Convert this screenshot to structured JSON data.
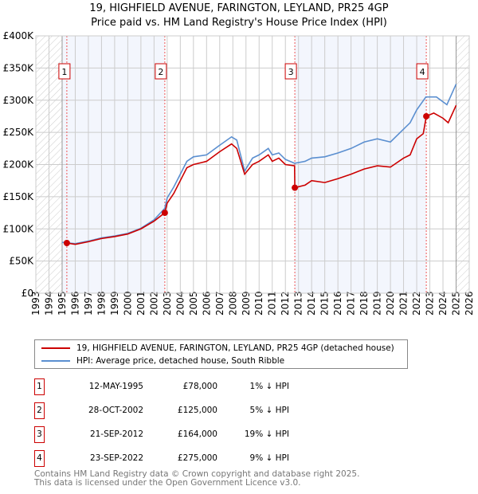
{
  "title_line1": "19, HIGHFIELD AVENUE, FARINGTON, LEYLAND, PR25 4GP",
  "title_line2": "Price paid vs. HM Land Registry's House Price Index (HPI)",
  "chart_data": {
    "type": "line",
    "xlim": [
      1993,
      2026
    ],
    "ylim": [
      0,
      400000
    ],
    "x_ticks": [
      "1993",
      "1994",
      "1995",
      "1996",
      "1997",
      "1998",
      "1999",
      "2000",
      "2001",
      "2002",
      "2003",
      "2004",
      "2005",
      "2006",
      "2007",
      "2008",
      "2009",
      "2010",
      "2011",
      "2012",
      "2013",
      "2014",
      "2015",
      "2016",
      "2017",
      "2018",
      "2019",
      "2020",
      "2021",
      "2022",
      "2023",
      "2024",
      "2025",
      "2026"
    ],
    "y_ticks": [
      {
        "v": 0,
        "label": "£0"
      },
      {
        "v": 50000,
        "label": "£50K"
      },
      {
        "v": 100000,
        "label": "£100K"
      },
      {
        "v": 150000,
        "label": "£150K"
      },
      {
        "v": 200000,
        "label": "£200K"
      },
      {
        "v": 250000,
        "label": "£250K"
      },
      {
        "v": 300000,
        "label": "£300K"
      },
      {
        "v": 350000,
        "label": "£350K"
      },
      {
        "v": 400000,
        "label": "£400K"
      }
    ],
    "data_range": [
      1995,
      2025
    ],
    "series": [
      {
        "name": "19, HIGHFIELD AVENUE, FARINGTON, LEYLAND, PR25 4GP (detached house)",
        "color": "#cc0000",
        "x": [
          1995.36,
          1996,
          1997,
          1998,
          1999,
          2000,
          2001,
          2002,
          2002.82,
          2003,
          2003.5,
          2004,
          2004.5,
          2005,
          2006,
          2007,
          2007.9,
          2008.3,
          2008.9,
          2009.5,
          2010,
          2010.7,
          2011,
          2011.5,
          2012,
          2012.7,
          2012.72,
          2013.5,
          2014,
          2015,
          2016,
          2017,
          2018,
          2019,
          2020,
          2021,
          2021.5,
          2022,
          2022.5,
          2022.73,
          2023.3,
          2024,
          2024.4,
          2025
        ],
        "y": [
          78000,
          76000,
          80000,
          85000,
          88000,
          92000,
          100000,
          112000,
          125000,
          140000,
          155000,
          175000,
          195000,
          200000,
          205000,
          220000,
          232000,
          225000,
          185000,
          200000,
          205000,
          215000,
          205000,
          210000,
          200000,
          198000,
          164000,
          168000,
          175000,
          172000,
          178000,
          185000,
          193000,
          198000,
          196000,
          210000,
          215000,
          240000,
          248000,
          275000,
          280000,
          272000,
          265000,
          292000
        ]
      },
      {
        "name": "HPI: Average price, detached house, South Ribble",
        "color": "#5b8fd0",
        "x": [
          1995,
          1996,
          1997,
          1998,
          1999,
          2000,
          2001,
          2002,
          2002.82,
          2003,
          2003.5,
          2004,
          2004.5,
          2005,
          2006,
          2007,
          2007.9,
          2008.3,
          2008.9,
          2009.5,
          2010,
          2010.7,
          2011,
          2011.5,
          2012,
          2012.7,
          2013.5,
          2014,
          2015,
          2016,
          2017,
          2018,
          2019,
          2020,
          2021,
          2021.5,
          2022,
          2022.7,
          2023.5,
          2024.3,
          2025
        ],
        "y": [
          79000,
          77000,
          81000,
          86000,
          89000,
          93000,
          101000,
          114000,
          132000,
          148000,
          165000,
          185000,
          205000,
          212000,
          215000,
          230000,
          243000,
          238000,
          190000,
          210000,
          215000,
          225000,
          215000,
          218000,
          208000,
          202000,
          205000,
          210000,
          212000,
          218000,
          225000,
          235000,
          240000,
          235000,
          255000,
          265000,
          285000,
          305000,
          305000,
          293000,
          325000
        ]
      }
    ],
    "sales": [
      {
        "n": "1",
        "x": 1995.36,
        "y": 78000,
        "date": "12-MAY-1995",
        "price": "£78,000",
        "pct": "1% ↓ HPI"
      },
      {
        "n": "2",
        "x": 2002.82,
        "y": 125000,
        "date": "28-OCT-2002",
        "price": "£125,000",
        "pct": "5% ↓ HPI"
      },
      {
        "n": "3",
        "x": 2012.72,
        "y": 164000,
        "date": "21-SEP-2012",
        "price": "£164,000",
        "pct": "19% ↓ HPI"
      },
      {
        "n": "4",
        "x": 2022.73,
        "y": 275000,
        "date": "23-SEP-2022",
        "price": "£275,000",
        "pct": "9% ↓ HPI"
      }
    ]
  },
  "legend": {
    "red": "19, HIGHFIELD AVENUE, FARINGTON, LEYLAND, PR25 4GP (detached house)",
    "blue": "HPI: Average price, detached house, South Ribble"
  },
  "footer1": "Contains HM Land Registry data © Crown copyright and database right 2025.",
  "footer2": "This data is licensed under the Open Government Licence v3.0."
}
